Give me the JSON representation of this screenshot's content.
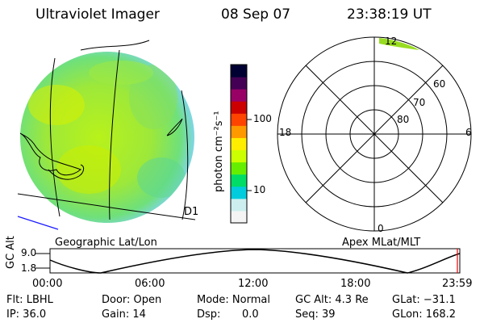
{
  "header": {
    "instrument": "Ultraviolet Imager",
    "date": "08 Sep 07",
    "time": "23:38:19 UT"
  },
  "colorbar": {
    "unit_label": "photon cm⁻²s⁻¹",
    "ticks": [
      "100",
      "10"
    ],
    "colors": [
      "#000033",
      "#440055",
      "#990066",
      "#cc0000",
      "#ff4400",
      "#ff9900",
      "#ffee00",
      "#ccff00",
      "#66ee00",
      "#00dd66",
      "#00ccdd",
      "#cceeee",
      "#f4f4f4"
    ]
  },
  "image_panel": {
    "caption": "Geographic Lat/Lon",
    "corner_label": "D1"
  },
  "polar_plot": {
    "caption": "Apex MLat/MLT",
    "lat_labels": [
      "60",
      "70",
      "80"
    ],
    "mlt_labels": {
      "top": "12",
      "left": "18",
      "right": "6",
      "bottom": "0"
    }
  },
  "timeline": {
    "ylabel": "GC Alt",
    "yticks": [
      "9.0",
      "1.8"
    ],
    "xticks": [
      "00:00",
      "06:00",
      "12:00",
      "18:00",
      "23:59"
    ]
  },
  "status": {
    "flt": "Flt: LBHL",
    "ip": "IP: 36.0",
    "door": "Door: Open",
    "gain": "Gain: 14",
    "mode": "Mode: Normal",
    "dsp_label": "Dsp:",
    "dsp_value": "0.0",
    "gc_alt": "GC Alt: 4.3 Re",
    "seq": "Seq: 39",
    "glat": "GLat: −31.1",
    "glon": "GLon: 168.2"
  }
}
